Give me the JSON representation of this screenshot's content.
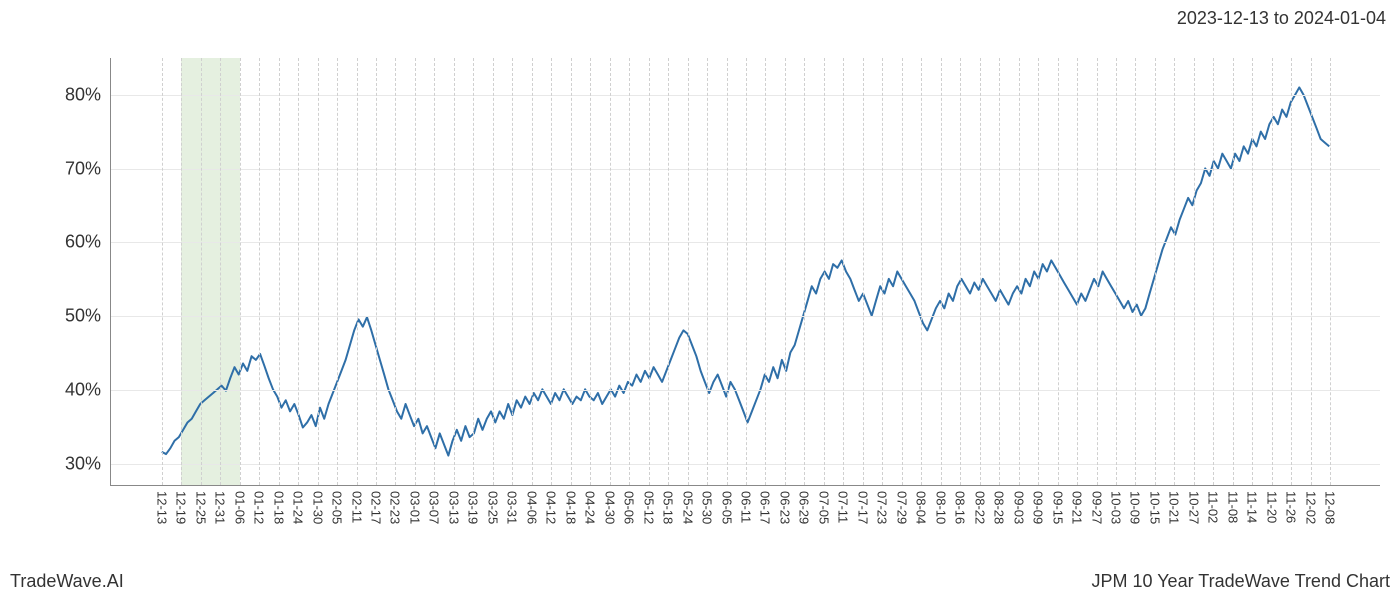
{
  "header": {
    "date_range": "2023-12-13 to 2024-01-04"
  },
  "footer": {
    "left": "TradeWave.AI",
    "right": "JPM 10 Year TradeWave Trend Chart"
  },
  "chart": {
    "type": "line",
    "background_color": "#ffffff",
    "line_color": "#2f6fa8",
    "line_width": 2,
    "grid_color_v": "#d0d0d0",
    "grid_color_h": "#e8e8e8",
    "axis_color": "#888888",
    "highlight": {
      "color": "#d4e6cc",
      "opacity": 0.6,
      "from_index": 1,
      "to_index": 4
    },
    "ylim": [
      27,
      85
    ],
    "yticks": [
      30,
      40,
      50,
      60,
      70,
      80
    ],
    "ytick_labels": [
      "30%",
      "40%",
      "50%",
      "60%",
      "70%",
      "80%"
    ],
    "ytick_fontsize": 18,
    "xtick_labels": [
      "12-13",
      "12-19",
      "12-25",
      "12-31",
      "01-06",
      "01-12",
      "01-18",
      "01-24",
      "01-30",
      "02-05",
      "02-11",
      "02-17",
      "02-23",
      "03-01",
      "03-07",
      "03-13",
      "03-19",
      "03-25",
      "03-31",
      "04-06",
      "04-12",
      "04-18",
      "04-24",
      "04-30",
      "05-06",
      "05-12",
      "05-18",
      "05-24",
      "05-30",
      "06-05",
      "06-11",
      "06-17",
      "06-23",
      "06-29",
      "07-05",
      "07-11",
      "07-17",
      "07-23",
      "07-29",
      "08-04",
      "08-10",
      "08-16",
      "08-22",
      "08-28",
      "09-03",
      "09-09",
      "09-15",
      "09-21",
      "09-27",
      "10-03",
      "10-09",
      "10-15",
      "10-21",
      "10-27",
      "11-02",
      "11-08",
      "11-14",
      "11-20",
      "11-26",
      "12-02",
      "12-08"
    ],
    "xtick_fontsize": 13,
    "x_padding_pct": 4,
    "values": [
      31.5,
      31.2,
      32.0,
      33.0,
      33.5,
      34.5,
      35.5,
      36.0,
      37.0,
      38.0,
      38.5,
      39.0,
      39.5,
      40.0,
      40.5,
      39.8,
      41.5,
      43.0,
      42.0,
      43.5,
      42.5,
      44.5,
      44.0,
      44.8,
      43.2,
      41.5,
      40.0,
      39.0,
      37.5,
      38.5,
      37.0,
      38.0,
      36.5,
      34.8,
      35.5,
      36.5,
      35.0,
      37.5,
      36.0,
      38.0,
      39.5,
      41.0,
      42.5,
      44.0,
      46.0,
      48.0,
      49.5,
      48.5,
      49.8,
      48.0,
      46.0,
      44.0,
      42.0,
      40.0,
      38.5,
      37.0,
      36.0,
      38.0,
      36.5,
      35.0,
      36.0,
      34.0,
      35.0,
      33.5,
      32.0,
      34.0,
      32.5,
      31.0,
      33.0,
      34.5,
      33.0,
      35.0,
      33.5,
      34.0,
      36.0,
      34.5,
      36.0,
      37.0,
      35.5,
      37.0,
      36.0,
      38.0,
      36.5,
      38.5,
      37.5,
      39.0,
      38.0,
      39.5,
      38.5,
      40.0,
      39.0,
      38.0,
      39.5,
      38.5,
      40.0,
      39.0,
      38.0,
      39.0,
      38.5,
      40.0,
      39.0,
      38.5,
      39.5,
      38.0,
      39.0,
      40.0,
      39.0,
      40.5,
      39.5,
      41.0,
      40.5,
      42.0,
      41.0,
      42.5,
      41.5,
      43.0,
      42.0,
      41.0,
      42.5,
      44.0,
      45.5,
      47.0,
      48.0,
      47.5,
      46.0,
      44.5,
      42.5,
      41.0,
      39.5,
      41.0,
      42.0,
      40.5,
      39.0,
      41.0,
      40.0,
      38.5,
      37.0,
      35.5,
      37.0,
      38.5,
      40.0,
      42.0,
      41.0,
      43.0,
      41.5,
      44.0,
      42.5,
      45.0,
      46.0,
      48.0,
      50.0,
      52.0,
      54.0,
      53.0,
      55.0,
      56.0,
      55.0,
      57.0,
      56.5,
      57.5,
      56.0,
      55.0,
      53.5,
      52.0,
      53.0,
      51.5,
      50.0,
      52.0,
      54.0,
      53.0,
      55.0,
      54.0,
      56.0,
      55.0,
      54.0,
      53.0,
      52.0,
      50.5,
      49.0,
      48.0,
      49.5,
      51.0,
      52.0,
      51.0,
      53.0,
      52.0,
      54.0,
      55.0,
      54.0,
      53.0,
      54.5,
      53.5,
      55.0,
      54.0,
      53.0,
      52.0,
      53.5,
      52.5,
      51.5,
      53.0,
      54.0,
      53.0,
      55.0,
      54.0,
      56.0,
      55.0,
      57.0,
      56.0,
      57.5,
      56.5,
      55.5,
      54.5,
      53.5,
      52.5,
      51.5,
      53.0,
      52.0,
      53.5,
      55.0,
      54.0,
      56.0,
      55.0,
      54.0,
      53.0,
      52.0,
      51.0,
      52.0,
      50.5,
      51.5,
      50.0,
      51.0,
      53.0,
      55.0,
      57.0,
      59.0,
      60.5,
      62.0,
      61.0,
      63.0,
      64.5,
      66.0,
      65.0,
      67.0,
      68.0,
      70.0,
      69.0,
      71.0,
      70.0,
      72.0,
      71.0,
      70.0,
      72.0,
      71.0,
      73.0,
      72.0,
      74.0,
      73.0,
      75.0,
      74.0,
      76.0,
      77.0,
      76.0,
      78.0,
      77.0,
      79.0,
      80.0,
      81.0,
      80.0,
      78.5,
      77.0,
      75.5,
      74.0,
      73.5,
      73.0
    ]
  }
}
